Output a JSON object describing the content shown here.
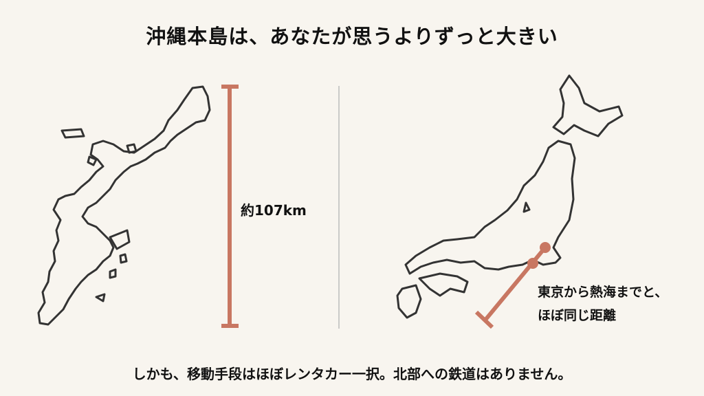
{
  "title": "沖縄本島は、あなたが思うよりずっと大きい",
  "left_panel": {
    "length_label": "約107km"
  },
  "right_panel": {
    "note_line1": "東京から熱海までと、",
    "note_line2": "ほぼ同じ距離"
  },
  "caption": "しかも、移動手段はほぼレンタカー一択。北部への鉄道はありません。",
  "colors": {
    "background": "#f8f5ef",
    "accent": "#c87762",
    "outline": "#333333",
    "divider": "#bbbbbb"
  },
  "icons": [
    "okinawa-map",
    "japan-map",
    "distance-scale-bar",
    "distance-line"
  ]
}
